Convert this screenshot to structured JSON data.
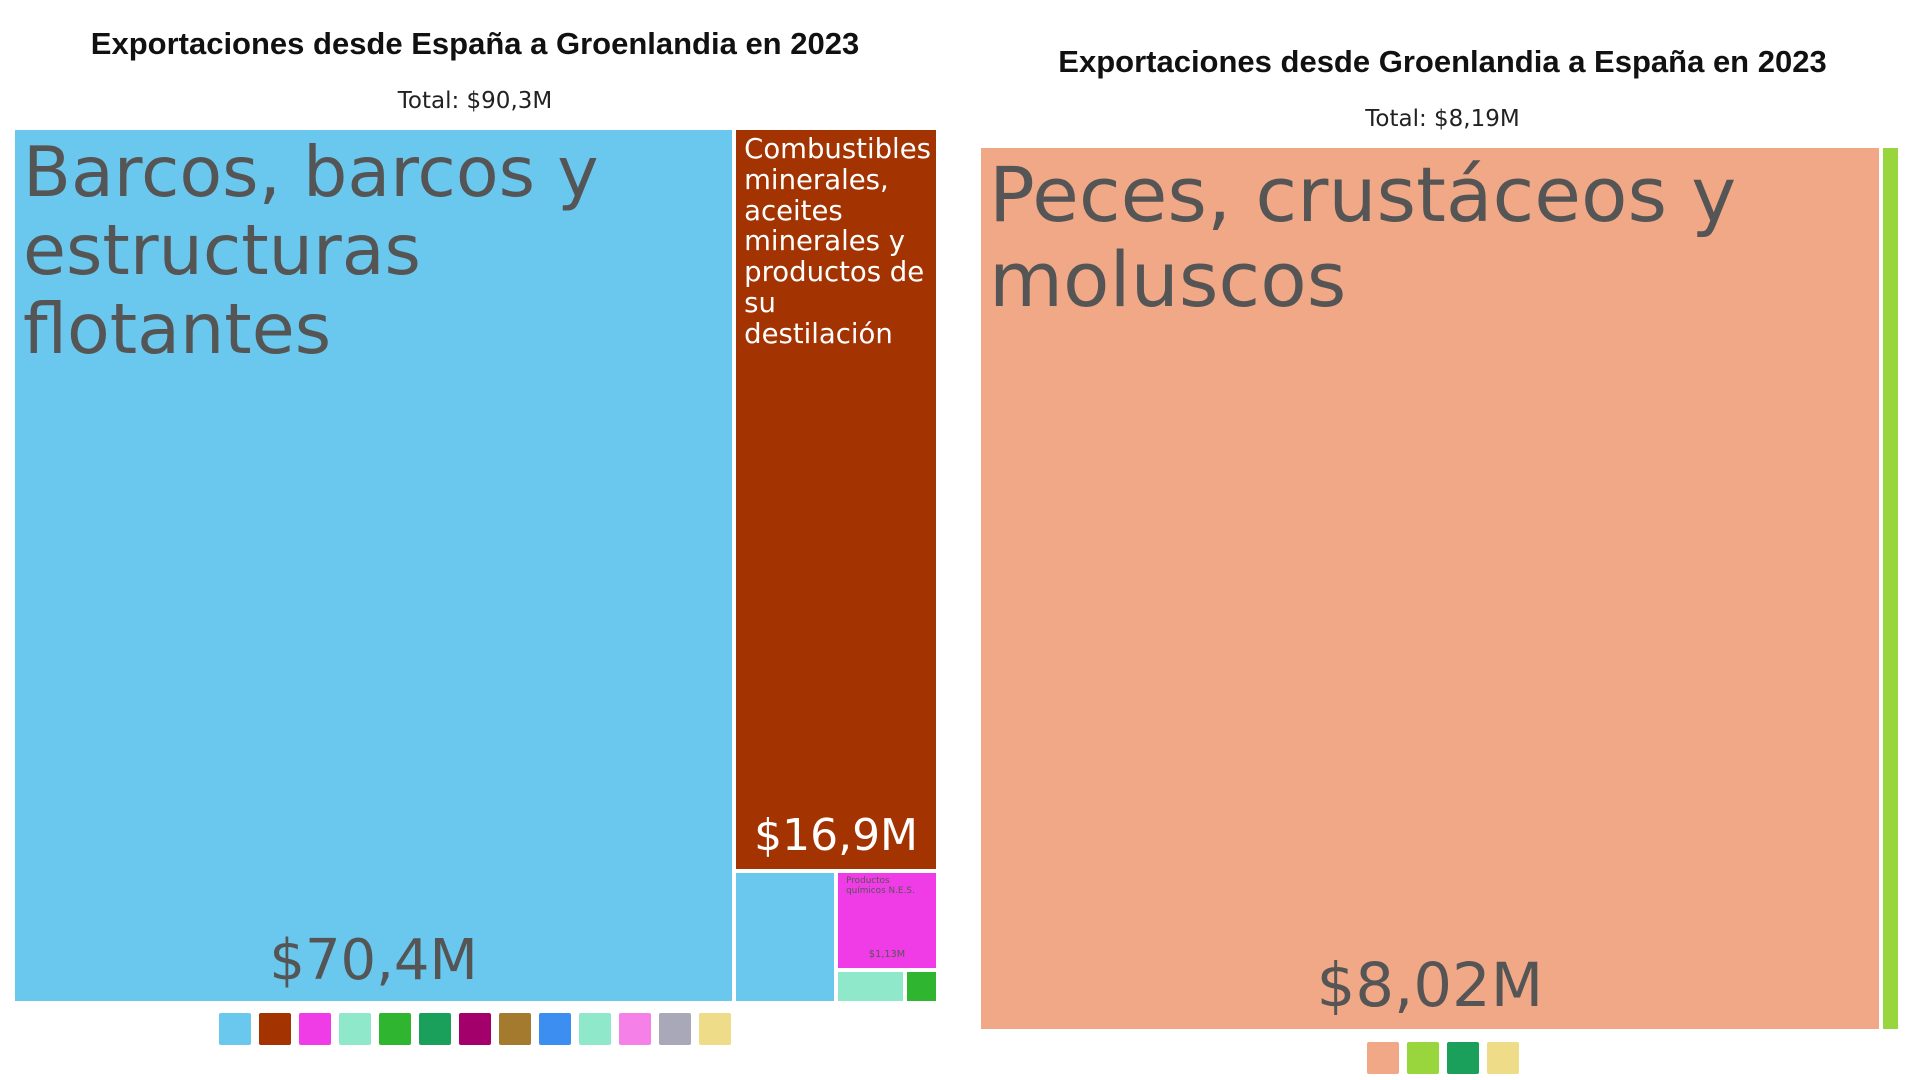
{
  "chart_data": [
    {
      "type": "treemap",
      "title": "Exportaciones desde España a Groenlandia en 2023",
      "subtitle": "Total: $90,3M",
      "items": [
        {
          "name": "Barcos, barcos y estructuras flotantes",
          "value": 70.4,
          "value_label": "$70,4M",
          "color": "#6ac7ee"
        },
        {
          "name": "Combustibles minerales, aceites minerales y productos de su destilación",
          "value": 16.9,
          "value_label": "$16,9M",
          "color": "#a33300"
        },
        {
          "name": null,
          "value": 1.5,
          "value_label": null,
          "color": "#6ac7ee"
        },
        {
          "name": "Productos químicos N.E.S.",
          "value": 1.13,
          "value_label": "$1,13M",
          "color": "#f03ce6"
        },
        {
          "name": null,
          "value": 0.25,
          "value_label": null,
          "color": "#8fe8c9"
        },
        {
          "name": null,
          "value": 0.12,
          "value_label": null,
          "color": "#2fb52f"
        }
      ]
    },
    {
      "type": "treemap",
      "title": "Exportaciones desde Groenlandia a España en 2023",
      "subtitle": "Total: $8,19M",
      "items": [
        {
          "name": "Peces, crustáceos y moluscos",
          "value": 8.02,
          "value_label": "$8,02M",
          "color": "#f1a887"
        },
        {
          "name": null,
          "value": 0.17,
          "value_label": null,
          "color": "#99d63d"
        }
      ]
    }
  ]
}
